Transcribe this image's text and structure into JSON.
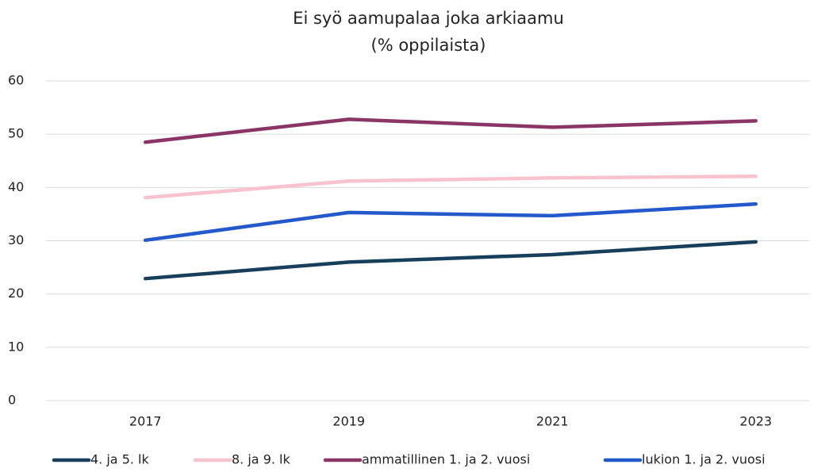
{
  "chart_data": {
    "type": "line",
    "title": "Ei syö aamupalaa joka arkiaamu",
    "subtitle": "(% oppilaista)",
    "categories": [
      "2017",
      "2019",
      "2021",
      "2023"
    ],
    "series": [
      {
        "name": "4. ja 5. lk",
        "color": "#173f5c",
        "values": [
          22.9,
          26.0,
          27.4,
          29.8
        ]
      },
      {
        "name": "8. ja 9. lk",
        "color": "#f8c2ce",
        "values": [
          38.1,
          41.2,
          41.8,
          42.1
        ]
      },
      {
        "name": "ammatillinen 1. ja 2. vuosi",
        "color": "#8b3566",
        "values": [
          48.5,
          52.8,
          51.3,
          52.5
        ]
      },
      {
        "name": "lukion 1. ja 2. vuosi",
        "color": "#2459cc",
        "values": [
          30.1,
          35.3,
          34.7,
          36.9
        ]
      }
    ],
    "ylim": [
      0,
      60
    ],
    "yticks": [
      0,
      10,
      20,
      30,
      40,
      50,
      60
    ],
    "grid": true,
    "legend": "bottom"
  }
}
